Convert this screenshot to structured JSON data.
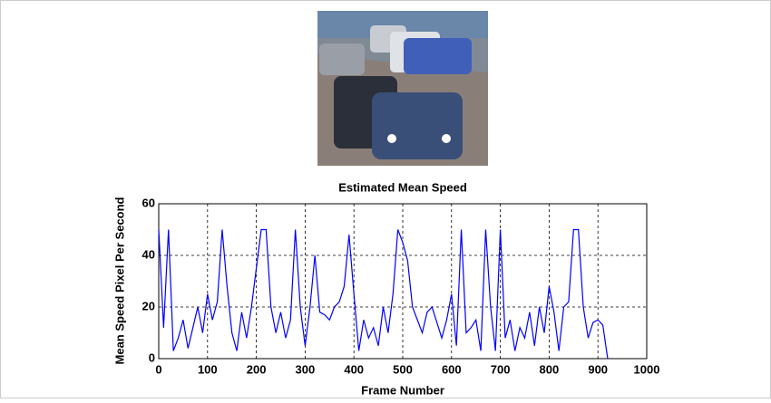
{
  "chart_data": {
    "type": "line",
    "title": "Estimated Mean Speed",
    "xlabel": "Frame Number",
    "ylabel": "Mean Speed Pixel Per Second",
    "x": [
      0,
      10,
      20,
      30,
      40,
      50,
      60,
      70,
      80,
      90,
      100,
      110,
      120,
      130,
      140,
      150,
      160,
      170,
      180,
      190,
      200,
      210,
      220,
      230,
      240,
      250,
      260,
      270,
      280,
      290,
      300,
      310,
      320,
      330,
      340,
      350,
      360,
      370,
      380,
      390,
      400,
      410,
      420,
      430,
      440,
      450,
      460,
      470,
      480,
      490,
      500,
      510,
      520,
      530,
      540,
      550,
      560,
      570,
      580,
      590,
      600,
      610,
      620,
      630,
      640,
      650,
      660,
      670,
      680,
      690,
      700,
      710,
      720,
      730,
      740,
      750,
      760,
      770,
      780,
      790,
      800,
      810,
      820,
      830,
      840,
      850,
      860,
      870,
      880,
      890,
      900,
      910,
      920
    ],
    "series": [
      {
        "name": "Mean Speed",
        "color": "#0000ff",
        "values": [
          50,
          12,
          50,
          3,
          8,
          15,
          4,
          12,
          20,
          10,
          25,
          15,
          22,
          50,
          28,
          10,
          3,
          18,
          8,
          20,
          35,
          50,
          50,
          20,
          10,
          18,
          8,
          15,
          50,
          20,
          5,
          20,
          40,
          18,
          17,
          15,
          20,
          22,
          28,
          48,
          25,
          3,
          15,
          8,
          12,
          5,
          20,
          10,
          25,
          50,
          45,
          38,
          20,
          15,
          10,
          18,
          20,
          14,
          8,
          15,
          25,
          5,
          50,
          10,
          12,
          15,
          3,
          50,
          20,
          3,
          50,
          8,
          15,
          3,
          12,
          8,
          18,
          5,
          20,
          10,
          28,
          18,
          3,
          20,
          22,
          50,
          50,
          20,
          8,
          14,
          15,
          13,
          0
        ]
      }
    ],
    "xlim": [
      0,
      1000
    ],
    "ylim": [
      0,
      60
    ],
    "xticks": [
      0,
      100,
      200,
      300,
      400,
      500,
      600,
      700,
      800,
      900,
      1000
    ],
    "yticks": [
      0,
      20,
      40,
      60
    ],
    "grid": true
  }
}
